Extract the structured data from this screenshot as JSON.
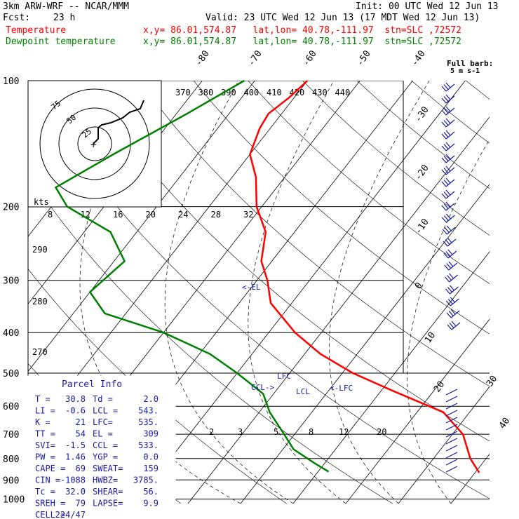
{
  "header": {
    "model": "3km ARW-WRF -- NCAR/MMM",
    "init": "Init: 00 UTC Wed 12 Jun 13",
    "fcst_label": "Fcst:",
    "fcst_value": "23 h",
    "valid": "Valid: 23 UTC Wed 12 Jun 13 (17 MDT Wed 12 Jun 13)",
    "legend": [
      {
        "name": "Temperature",
        "info": "x,y= 86.01,574.87   lat,lon= 40.78,-111.97  stn=SLC ,72572",
        "color": "#ff0000"
      },
      {
        "name": "Dewpoint temperature",
        "info": "x,y= 86.01,574.87   lat,lon= 40.78,-111.97  stn=SLC ,72572",
        "color": "#008000"
      }
    ]
  },
  "chart_data": {
    "type": "line",
    "title": "3km ARW-WRF -- NCAR/MMM",
    "y_axis": {
      "label": "",
      "scale": "log",
      "ticks": [
        100,
        200,
        300,
        400,
        500,
        600,
        700,
        800,
        900,
        1000
      ]
    },
    "isotherm_labels": [
      -80,
      -70,
      -60,
      -50,
      -40,
      -30,
      -20,
      -10,
      0,
      10,
      20,
      30,
      40
    ],
    "theta_labels": [
      370,
      380,
      390,
      400,
      410,
      420,
      430,
      440
    ],
    "mixing_ratio_labels": [
      2,
      3,
      5,
      8,
      12,
      20
    ],
    "theta_e_labels": [
      290,
      280,
      270
    ],
    "hodograph": {
      "unit_label": "kts",
      "ring_labels": [
        75,
        50,
        25
      ],
      "speed_axis": [
        8,
        12,
        16,
        20,
        24,
        28,
        32
      ]
    },
    "wind_key": {
      "line1": "Full barb:",
      "line2": "5 m s-1"
    },
    "series": [
      {
        "name": "Temperature",
        "color": "#ff0000",
        "points": [
          [
            100,
            -60.0
          ],
          [
            110,
            -61.0
          ],
          [
            120,
            -62.5
          ],
          [
            130,
            -62.0
          ],
          [
            150,
            -60.0
          ],
          [
            170,
            -55.5
          ],
          [
            200,
            -51.0
          ],
          [
            230,
            -45.5
          ],
          [
            270,
            -42.0
          ],
          [
            300,
            -38.0
          ],
          [
            340,
            -34.0
          ],
          [
            400,
            -25.0
          ],
          [
            450,
            -17.0
          ],
          [
            500,
            -8.0
          ],
          [
            550,
            2.0
          ],
          [
            620,
            15.0
          ],
          [
            700,
            22.0
          ],
          [
            800,
            27.0
          ],
          [
            865,
            30.8
          ]
        ]
      },
      {
        "name": "Dewpoint temperature",
        "color": "#008000",
        "points": [
          [
            100,
            -72.0
          ],
          [
            120,
            -78.0
          ],
          [
            150,
            -86.0
          ],
          [
            180,
            -92.0
          ],
          [
            200,
            -87.0
          ],
          [
            230,
            -75.0
          ],
          [
            270,
            -68.0
          ],
          [
            320,
            -70.0
          ],
          [
            360,
            -64.0
          ],
          [
            400,
            -50.0
          ],
          [
            450,
            -38.0
          ],
          [
            500,
            -30.0
          ],
          [
            560,
            -22.0
          ],
          [
            620,
            -18.0
          ],
          [
            700,
            -12.0
          ],
          [
            760,
            -8.0
          ],
          [
            820,
            -2.0
          ],
          [
            860,
            2.0
          ]
        ]
      }
    ],
    "annotations": [
      "<-EL",
      "LFC",
      "CCL->",
      "LCL",
      "<-LFC"
    ],
    "parcel_info": {
      "title": "Parcel Info",
      "rows": [
        [
          "T  =",
          "30.8",
          "Td =",
          "2.0"
        ],
        [
          "LI =",
          "-0.6",
          "LCL =",
          "543."
        ],
        [
          "K  =",
          "21",
          "LFC=",
          "535."
        ],
        [
          "TT =",
          "54",
          "EL =",
          "309"
        ],
        [
          "SVI=",
          "-1.5",
          "CCL =",
          "533."
        ],
        [
          "PW =",
          "1.46",
          "YGP =",
          "0.0"
        ],
        [
          "CAPE =",
          "69",
          "SWEAT=",
          "159"
        ],
        [
          "CIN =",
          "-1088",
          "HWBZ=",
          "3785."
        ],
        [
          "Tc =",
          "32.0",
          "SHEAR=",
          "56."
        ],
        [
          "SREH =",
          "79",
          "LAPSE=",
          "9.9"
        ],
        [
          "CELL =",
          "224/47",
          "",
          ""
        ]
      ]
    }
  }
}
